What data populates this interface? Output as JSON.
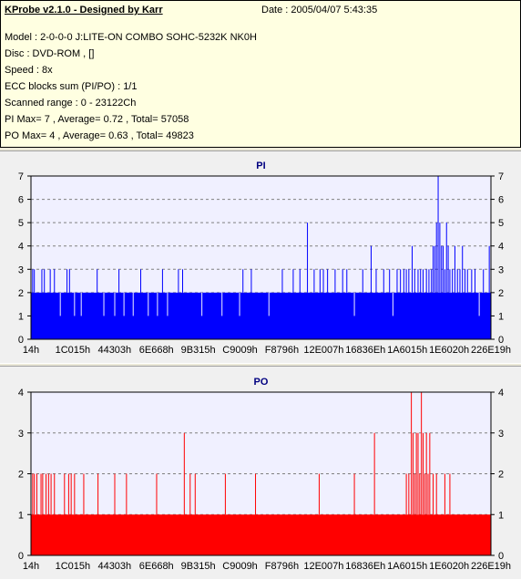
{
  "window": {
    "title": "KProbe v2.1.0 - Designed by Karr",
    "date": "Date : 2005/04/07 5:43:35"
  },
  "info_lines": [
    "Model : 2-0-0-0 J:LITE-ON COMBO SOHC-5232K NK0H",
    "Disc : DVD-ROM ,  []",
    "Speed : 8x",
    "ECC blocks sum (PI/PO) : 1/1",
    "Scanned range : 0 - 23122Ch",
    "PI Max= 7 , Average= 0.72 , Total= 57058",
    "PO Max= 4 , Average= 0.63 , Total= 49823"
  ],
  "colors": {
    "pi": "#0000ff",
    "po": "#ff0000",
    "title": "#000080",
    "plot_bg": "#f0f0ff",
    "grid": "#808080"
  },
  "chart_data": [
    {
      "type": "bar",
      "title": "PI",
      "xlabel": "",
      "ylabel": "",
      "ylim": [
        0,
        7
      ],
      "yticks": [
        0,
        1,
        2,
        3,
        4,
        5,
        6,
        7
      ],
      "xticks": [
        "14h",
        "1C015h",
        "44303h",
        "6E668h",
        "9B315h",
        "C9009h",
        "F8796h",
        "12E007h",
        "16836Eh",
        "1A6015h",
        "1E6020h",
        "226E19h"
      ],
      "x_range_hex": [
        20,
        2256412
      ],
      "grid": "dashed horizontal",
      "baseline": 2,
      "spikes": [
        {
          "x": 2,
          "y": 3
        },
        {
          "x": 4,
          "y": 3
        },
        {
          "x": 13,
          "y": 3
        },
        {
          "x": 16,
          "y": 3
        },
        {
          "x": 23,
          "y": 3
        },
        {
          "x": 28,
          "y": 3
        },
        {
          "x": 35,
          "y": 1
        },
        {
          "x": 43,
          "y": 3
        },
        {
          "x": 46,
          "y": 3
        },
        {
          "x": 52,
          "y": 1
        },
        {
          "x": 60,
          "y": 1
        },
        {
          "x": 79,
          "y": 3
        },
        {
          "x": 87,
          "y": 1
        },
        {
          "x": 100,
          "y": 1
        },
        {
          "x": 105,
          "y": 3
        },
        {
          "x": 111,
          "y": 1
        },
        {
          "x": 122,
          "y": 1
        },
        {
          "x": 131,
          "y": 3
        },
        {
          "x": 140,
          "y": 1
        },
        {
          "x": 151,
          "y": 1
        },
        {
          "x": 157,
          "y": 3
        },
        {
          "x": 163,
          "y": 1
        },
        {
          "x": 176,
          "y": 3
        },
        {
          "x": 181,
          "y": 3
        },
        {
          "x": 204,
          "y": 1
        },
        {
          "x": 228,
          "y": 1
        },
        {
          "x": 249,
          "y": 1
        },
        {
          "x": 253,
          "y": 3
        },
        {
          "x": 263,
          "y": 3
        },
        {
          "x": 284,
          "y": 1
        },
        {
          "x": 300,
          "y": 3
        },
        {
          "x": 313,
          "y": 3
        },
        {
          "x": 321,
          "y": 3
        },
        {
          "x": 330,
          "y": 5
        },
        {
          "x": 338,
          "y": 3
        },
        {
          "x": 345,
          "y": 3
        },
        {
          "x": 349,
          "y": 3
        },
        {
          "x": 354,
          "y": 3
        },
        {
          "x": 363,
          "y": 3
        },
        {
          "x": 372,
          "y": 3
        },
        {
          "x": 377,
          "y": 3
        },
        {
          "x": 386,
          "y": 1
        },
        {
          "x": 396,
          "y": 3
        },
        {
          "x": 406,
          "y": 4
        },
        {
          "x": 412,
          "y": 3
        },
        {
          "x": 421,
          "y": 3
        },
        {
          "x": 428,
          "y": 3
        },
        {
          "x": 432,
          "y": 1
        },
        {
          "x": 437,
          "y": 3
        },
        {
          "x": 441,
          "y": 3
        },
        {
          "x": 445,
          "y": 3
        },
        {
          "x": 448,
          "y": 3
        },
        {
          "x": 451,
          "y": 3
        },
        {
          "x": 455,
          "y": 4
        },
        {
          "x": 458,
          "y": 3
        },
        {
          "x": 462,
          "y": 3
        },
        {
          "x": 465,
          "y": 3
        },
        {
          "x": 468,
          "y": 3
        },
        {
          "x": 472,
          "y": 3
        },
        {
          "x": 475,
          "y": 3
        },
        {
          "x": 478,
          "y": 3
        },
        {
          "x": 480,
          "y": 4
        },
        {
          "x": 482,
          "y": 4
        },
        {
          "x": 484,
          "y": 5
        },
        {
          "x": 486,
          "y": 7
        },
        {
          "x": 488,
          "y": 5
        },
        {
          "x": 490,
          "y": 4
        },
        {
          "x": 492,
          "y": 4
        },
        {
          "x": 494,
          "y": 3
        },
        {
          "x": 496,
          "y": 5
        },
        {
          "x": 498,
          "y": 4
        },
        {
          "x": 500,
          "y": 3
        },
        {
          "x": 503,
          "y": 3
        },
        {
          "x": 506,
          "y": 4
        },
        {
          "x": 509,
          "y": 3
        },
        {
          "x": 512,
          "y": 3
        },
        {
          "x": 515,
          "y": 4
        },
        {
          "x": 518,
          "y": 3
        },
        {
          "x": 521,
          "y": 3
        },
        {
          "x": 526,
          "y": 3
        },
        {
          "x": 530,
          "y": 3
        },
        {
          "x": 535,
          "y": 1
        },
        {
          "x": 540,
          "y": 3
        },
        {
          "x": 547,
          "y": 4
        }
      ]
    },
    {
      "type": "bar",
      "title": "PO",
      "xlabel": "",
      "ylabel": "",
      "ylim": [
        0,
        4
      ],
      "yticks": [
        0,
        1,
        2,
        3,
        4
      ],
      "xticks": [
        "14h",
        "1C015h",
        "44303h",
        "6E668h",
        "9B315h",
        "C9009h",
        "F8796h",
        "12E007h",
        "16836Eh",
        "1A6015h",
        "1E6020h",
        "226E19h"
      ],
      "x_range_hex": [
        20,
        2256412
      ],
      "grid": "dashed horizontal",
      "baseline": 1,
      "spikes": [
        {
          "x": 2,
          "y": 2
        },
        {
          "x": 4,
          "y": 2
        },
        {
          "x": 7,
          "y": 2
        },
        {
          "x": 12,
          "y": 2
        },
        {
          "x": 14,
          "y": 2
        },
        {
          "x": 18,
          "y": 2
        },
        {
          "x": 21,
          "y": 2
        },
        {
          "x": 24,
          "y": 2
        },
        {
          "x": 28,
          "y": 2
        },
        {
          "x": 40,
          "y": 2
        },
        {
          "x": 45,
          "y": 2
        },
        {
          "x": 48,
          "y": 2
        },
        {
          "x": 52,
          "y": 2
        },
        {
          "x": 63,
          "y": 2
        },
        {
          "x": 80,
          "y": 2
        },
        {
          "x": 100,
          "y": 2
        },
        {
          "x": 114,
          "y": 2
        },
        {
          "x": 150,
          "y": 2
        },
        {
          "x": 183,
          "y": 3
        },
        {
          "x": 190,
          "y": 2
        },
        {
          "x": 196,
          "y": 2
        },
        {
          "x": 232,
          "y": 2
        },
        {
          "x": 268,
          "y": 2
        },
        {
          "x": 344,
          "y": 2
        },
        {
          "x": 386,
          "y": 2
        },
        {
          "x": 410,
          "y": 3
        },
        {
          "x": 448,
          "y": 2
        },
        {
          "x": 451,
          "y": 2
        },
        {
          "x": 454,
          "y": 4
        },
        {
          "x": 456,
          "y": 3
        },
        {
          "x": 458,
          "y": 2
        },
        {
          "x": 460,
          "y": 3
        },
        {
          "x": 462,
          "y": 3
        },
        {
          "x": 464,
          "y": 2
        },
        {
          "x": 466,
          "y": 4
        },
        {
          "x": 468,
          "y": 3
        },
        {
          "x": 470,
          "y": 2
        },
        {
          "x": 472,
          "y": 3
        },
        {
          "x": 474,
          "y": 2
        },
        {
          "x": 476,
          "y": 3
        },
        {
          "x": 480,
          "y": 2
        },
        {
          "x": 484,
          "y": 2
        },
        {
          "x": 494,
          "y": 2
        },
        {
          "x": 500,
          "y": 2
        }
      ]
    }
  ]
}
